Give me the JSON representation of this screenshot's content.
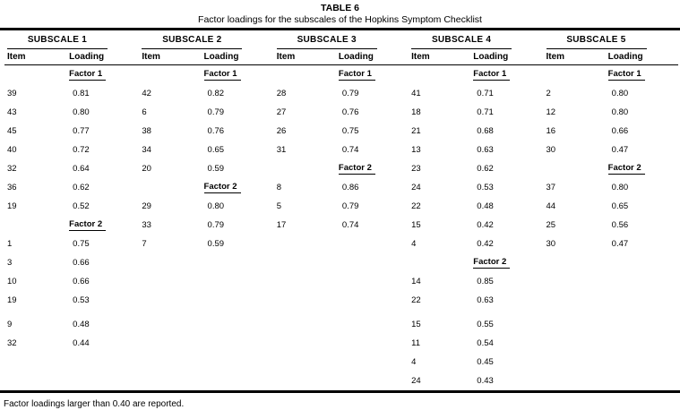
{
  "title": "TABLE 6",
  "subtitle": "Factor loadings for the subscales of the Hopkins Symptom Checklist",
  "footnote": "Factor loadings larger than 0.40 are reported.",
  "colors": {
    "text": "#000000",
    "background": "#ffffff",
    "rules": "#000000"
  },
  "columns": {
    "item": "Item",
    "loading": "Loading"
  },
  "subscales": [
    {
      "label": "SUBSCALE 1"
    },
    {
      "label": "SUBSCALE 2"
    },
    {
      "label": "SUBSCALE 3"
    },
    {
      "label": "SUBSCALE 4"
    },
    {
      "label": "SUBSCALE 5"
    }
  ],
  "rows": [
    {
      "cells": [
        {
          "factor": "Factor 1"
        },
        {
          "factor": "Factor 1"
        },
        {
          "factor": "Factor 1"
        },
        {
          "factor": "Factor 1"
        },
        {
          "factor": "Factor 1"
        }
      ]
    },
    {
      "cells": [
        {
          "item": "39",
          "loading": "0.81"
        },
        {
          "item": "42",
          "loading": "0.82"
        },
        {
          "item": "28",
          "loading": "0.79"
        },
        {
          "item": "41",
          "loading": "0.71"
        },
        {
          "item": "2",
          "loading": "0.80"
        }
      ]
    },
    {
      "cells": [
        {
          "item": "43",
          "loading": "0.80"
        },
        {
          "item": "6",
          "loading": "0.79"
        },
        {
          "item": "27",
          "loading": "0.76"
        },
        {
          "item": "18",
          "loading": "0.71"
        },
        {
          "item": "12",
          "loading": "0.80"
        }
      ]
    },
    {
      "cells": [
        {
          "item": "45",
          "loading": "0.77"
        },
        {
          "item": "38",
          "loading": "0.76"
        },
        {
          "item": "26",
          "loading": "0.75"
        },
        {
          "item": "21",
          "loading": "0.68"
        },
        {
          "item": "16",
          "loading": "0.66"
        }
      ]
    },
    {
      "cells": [
        {
          "item": "40",
          "loading": "0.72"
        },
        {
          "item": "34",
          "loading": "0.65"
        },
        {
          "item": "31",
          "loading": "0.74"
        },
        {
          "item": "13",
          "loading": "0.63"
        },
        {
          "item": "30",
          "loading": "0.47"
        }
      ]
    },
    {
      "cells": [
        {
          "item": "32",
          "loading": "0.64"
        },
        {
          "item": "20",
          "loading": "0.59"
        },
        {
          "factor": "Factor 2"
        },
        {
          "item": "23",
          "loading": "0.62"
        },
        {
          "factor": "Factor 2"
        }
      ]
    },
    {
      "cells": [
        {
          "item": "36",
          "loading": "0.62"
        },
        {
          "factor": "Factor 2"
        },
        {
          "item": "8",
          "loading": "0.86"
        },
        {
          "item": "24",
          "loading": "0.53"
        },
        {
          "item": "37",
          "loading": "0.80"
        }
      ]
    },
    {
      "cells": [
        {
          "item": "19",
          "loading": "0.52"
        },
        {
          "item": "29",
          "loading": "0.80"
        },
        {
          "item": "5",
          "loading": "0.79"
        },
        {
          "item": "22",
          "loading": "0.48"
        },
        {
          "item": "44",
          "loading": "0.65"
        }
      ]
    },
    {
      "cells": [
        {
          "factor": "Factor 2"
        },
        {
          "item": "33",
          "loading": "0.79"
        },
        {
          "item": "17",
          "loading": "0.74"
        },
        {
          "item": "15",
          "loading": "0.42"
        },
        {
          "item": "25",
          "loading": "0.56"
        }
      ]
    },
    {
      "cells": [
        {
          "item": "1",
          "loading": "0.75"
        },
        {
          "item": "7",
          "loading": "0.59"
        },
        {},
        {
          "item": "4",
          "loading": "0.42"
        },
        {
          "item": "30",
          "loading": "0.47"
        }
      ]
    },
    {
      "cells": [
        {
          "item": "3",
          "loading": "0.66"
        },
        {},
        {},
        {
          "factor": "Factor 2"
        },
        {}
      ]
    },
    {
      "cells": [
        {
          "item": "10",
          "loading": "0.66"
        },
        {},
        {},
        {
          "item": "14",
          "loading": "0.85"
        },
        {}
      ]
    },
    {
      "cells": [
        {
          "item": "19",
          "loading": "0.53"
        },
        {},
        {},
        {
          "item": "22",
          "loading": "0.63"
        },
        {}
      ]
    },
    {
      "gap_before": true,
      "cells": [
        {
          "item": "9",
          "loading": "0.48"
        },
        {},
        {},
        {
          "item": "15",
          "loading": "0.55"
        },
        {}
      ]
    },
    {
      "cells": [
        {
          "item": "32",
          "loading": "0.44"
        },
        {},
        {},
        {
          "item": "11",
          "loading": "0.54"
        },
        {}
      ]
    },
    {
      "cells": [
        {},
        {},
        {},
        {
          "item": "4",
          "loading": "0.45"
        },
        {}
      ]
    },
    {
      "cells": [
        {},
        {},
        {},
        {
          "item": "24",
          "loading": "0.43"
        },
        {}
      ]
    }
  ]
}
